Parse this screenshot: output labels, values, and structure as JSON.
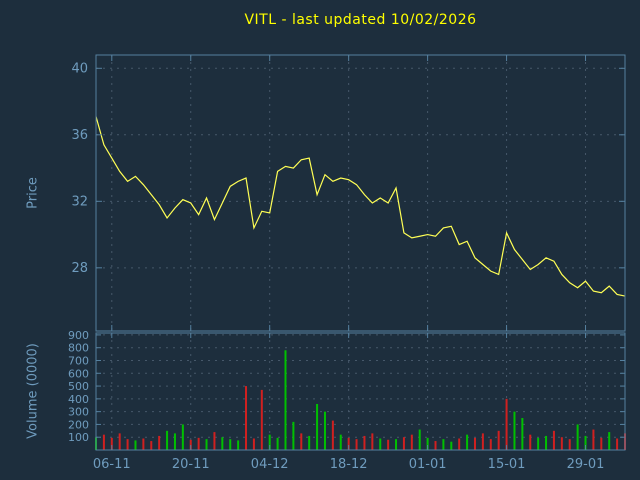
{
  "title": "VITL - last updated 10/02/2026",
  "colors": {
    "background": "#1d2e3d",
    "title": "#ffff00",
    "axis": "#55809f",
    "tick_label": "#6f9cbe",
    "grid": "#46586a",
    "price_line": "#ffff55",
    "volume_up": "#00c000",
    "volume_down": "#d02020"
  },
  "chart_data": [
    {
      "type": "line",
      "title": "VITL - last updated 10/02/2026",
      "xlabel": "",
      "ylabel": "Price",
      "ylim": [
        24.2,
        40.8
      ],
      "yticks": [
        28,
        32,
        36,
        40
      ],
      "grid": true,
      "legend": "none",
      "x_unit": "trading-day index",
      "x_tick_labels": [
        "06-11",
        "20-11",
        "04-12",
        "18-12",
        "01-01",
        "15-01",
        "29-01"
      ],
      "x_tick_indices": [
        2,
        12,
        22,
        32,
        42,
        52,
        62
      ],
      "values": [
        37.1,
        35.4,
        34.6,
        33.8,
        33.2,
        33.5,
        33.0,
        32.4,
        31.8,
        31.0,
        31.6,
        32.1,
        31.9,
        31.2,
        32.2,
        30.9,
        31.9,
        32.9,
        33.2,
        33.4,
        30.4,
        31.4,
        31.3,
        33.8,
        34.1,
        34.0,
        34.5,
        34.6,
        32.4,
        33.6,
        33.2,
        33.4,
        33.3,
        33.0,
        32.4,
        31.9,
        32.2,
        31.9,
        32.8,
        30.1,
        29.8,
        29.9,
        30.0,
        29.9,
        30.4,
        30.5,
        29.4,
        29.6,
        28.6,
        28.2,
        27.8,
        27.6,
        30.1,
        29.1,
        28.5,
        27.9,
        28.2,
        28.6,
        28.4,
        27.6,
        27.1,
        26.8,
        27.2,
        26.6,
        26.5,
        26.9,
        26.4,
        26.3
      ]
    },
    {
      "type": "bar",
      "title": "",
      "xlabel": "",
      "ylabel": "Volume (0000)",
      "ylim": [
        0,
        915
      ],
      "yticks": [
        100,
        200,
        300,
        400,
        500,
        600,
        700,
        800,
        900
      ],
      "grid": true,
      "legend": "none",
      "x_tick_labels": [
        "06-11",
        "20-11",
        "04-12",
        "18-12",
        "01-01",
        "15-01",
        "29-01"
      ],
      "x_tick_indices": [
        2,
        12,
        22,
        32,
        42,
        52,
        62
      ],
      "values": [
        100,
        120,
        95,
        130,
        85,
        75,
        90,
        70,
        110,
        150,
        130,
        200,
        80,
        95,
        85,
        140,
        100,
        85,
        75,
        500,
        90,
        470,
        120,
        95,
        780,
        220,
        130,
        110,
        360,
        300,
        230,
        120,
        95,
        85,
        110,
        130,
        90,
        80,
        85,
        100,
        120,
        160,
        95,
        70,
        85,
        65,
        90,
        120,
        95,
        130,
        85,
        150,
        400,
        300,
        250,
        120,
        95,
        110,
        150,
        100,
        85,
        200,
        110,
        160,
        95,
        140,
        90,
        130
      ],
      "directions": [
        "u",
        "d",
        "d",
        "d",
        "d",
        "u",
        "d",
        "d",
        "d",
        "u",
        "u",
        "u",
        "d",
        "d",
        "u",
        "d",
        "u",
        "u",
        "u",
        "d",
        "d",
        "d",
        "u",
        "u",
        "u",
        "u",
        "d",
        "u",
        "u",
        "u",
        "d",
        "u",
        "d",
        "d",
        "d",
        "d",
        "u",
        "d",
        "u",
        "d",
        "d",
        "u",
        "u",
        "d",
        "u",
        "u",
        "d",
        "u",
        "d",
        "d",
        "d",
        "d",
        "d",
        "u",
        "u",
        "d",
        "u",
        "u",
        "d",
        "d",
        "d",
        "u",
        "u",
        "d",
        "d",
        "u",
        "d",
        "d"
      ]
    }
  ]
}
